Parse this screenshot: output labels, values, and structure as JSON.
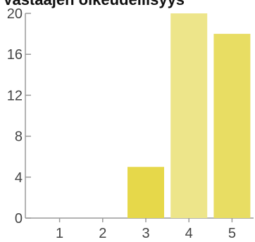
{
  "chart_data": {
    "type": "bar",
    "title": "Vastaajen oikeudellisyys",
    "categories": [
      "1",
      "2",
      "3",
      "4",
      "5"
    ],
    "values": [
      0,
      0,
      5,
      20,
      18
    ],
    "bar_colors": [
      "#e6d84a",
      "#e6d84a",
      "#e6d84a",
      "#ede58a",
      "#e8dd63"
    ],
    "ylim": [
      0,
      20
    ],
    "y_ticks": [
      "0",
      "4",
      "8",
      "12",
      "16",
      "20"
    ],
    "xlabel": "",
    "ylabel": "",
    "grid": false,
    "legend": "none"
  }
}
